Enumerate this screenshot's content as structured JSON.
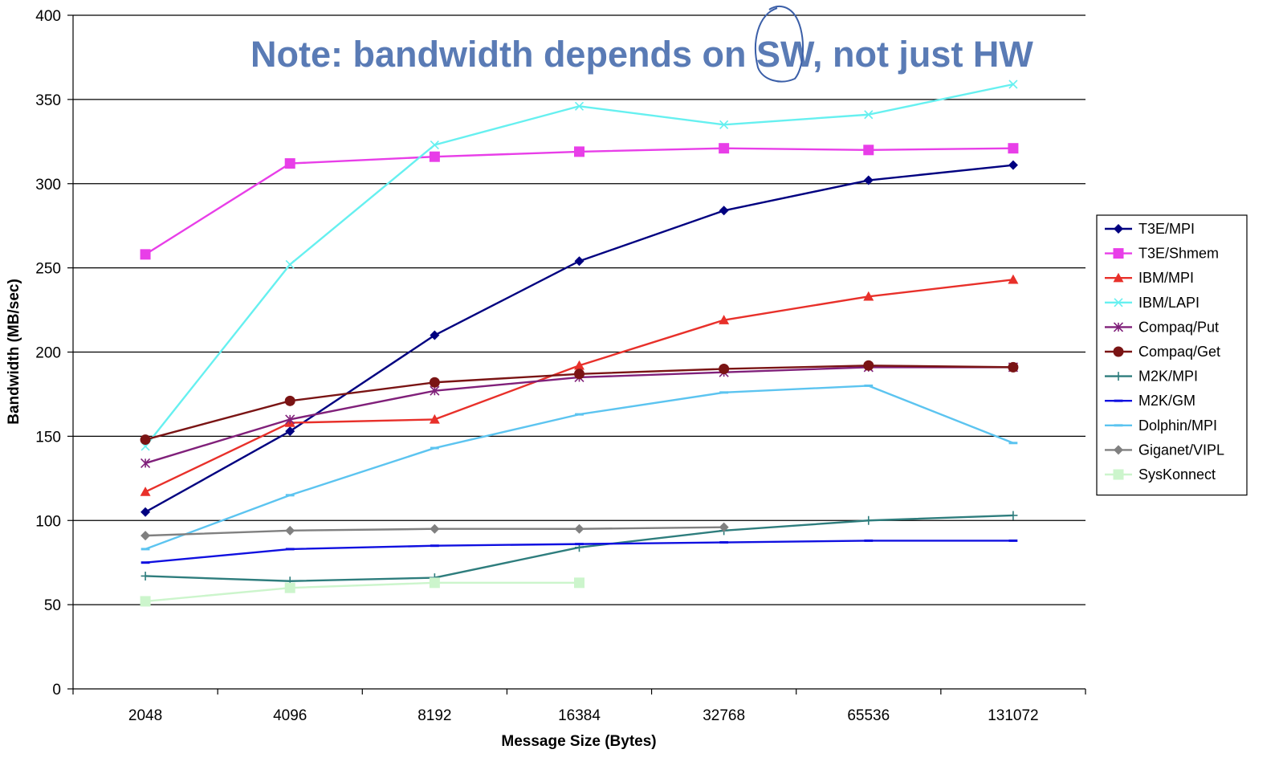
{
  "chart_data": {
    "type": "line",
    "annotation": "Note: bandwidth depends on SW, not just HW",
    "xlabel": "Message Size (Bytes)",
    "ylabel": "Bandwidth (MB/sec)",
    "categories": [
      "2048",
      "4096",
      "8192",
      "16384",
      "32768",
      "65536",
      "131072"
    ],
    "ylim": [
      0,
      400
    ],
    "yticks": [
      "0",
      "50",
      "100",
      "150",
      "200",
      "250",
      "300",
      "350",
      "400"
    ],
    "grid": true,
    "legend_position": "right",
    "series": [
      {
        "name": "T3E/MPI",
        "color": "#000080",
        "marker": "diamond",
        "values": [
          105,
          153,
          210,
          254,
          284,
          302,
          311
        ]
      },
      {
        "name": "T3E/Shmem",
        "color": "#e83ee8",
        "marker": "square",
        "values": [
          258,
          312,
          316,
          319,
          321,
          320,
          321
        ]
      },
      {
        "name": "IBM/MPI",
        "color": "#e8302a",
        "marker": "triangle",
        "values": [
          117,
          158,
          160,
          192,
          219,
          233,
          243
        ]
      },
      {
        "name": "IBM/LAPI",
        "color": "#66f0f0",
        "marker": "x",
        "values": [
          144,
          252,
          323,
          346,
          335,
          341,
          359
        ]
      },
      {
        "name": "Compaq/Put",
        "color": "#80207a",
        "marker": "star",
        "values": [
          134,
          160,
          177,
          185,
          188,
          191,
          191
        ]
      },
      {
        "name": "Compaq/Get",
        "color": "#7a1414",
        "marker": "circle",
        "values": [
          148,
          171,
          182,
          187,
          190,
          192,
          191
        ]
      },
      {
        "name": "M2K/MPI",
        "color": "#2e7d7d",
        "marker": "plus",
        "values": [
          67,
          64,
          66,
          84,
          94,
          100,
          103
        ]
      },
      {
        "name": "M2K/GM",
        "color": "#1010e0",
        "marker": "dash",
        "values": [
          75,
          83,
          85,
          86,
          87,
          88,
          88
        ]
      },
      {
        "name": "Dolphin/MPI",
        "color": "#5cc4f0",
        "marker": "dash",
        "values": [
          83,
          115,
          143,
          163,
          176,
          180,
          146
        ]
      },
      {
        "name": "Giganet/VIPL",
        "color": "#808080",
        "marker": "diamond",
        "values": [
          91,
          94,
          95,
          95,
          96,
          null,
          null
        ]
      },
      {
        "name": "SysKonnect",
        "color": "#ccf5cc",
        "marker": "square",
        "values": [
          52,
          60,
          63,
          63,
          null,
          null,
          null
        ]
      }
    ]
  }
}
